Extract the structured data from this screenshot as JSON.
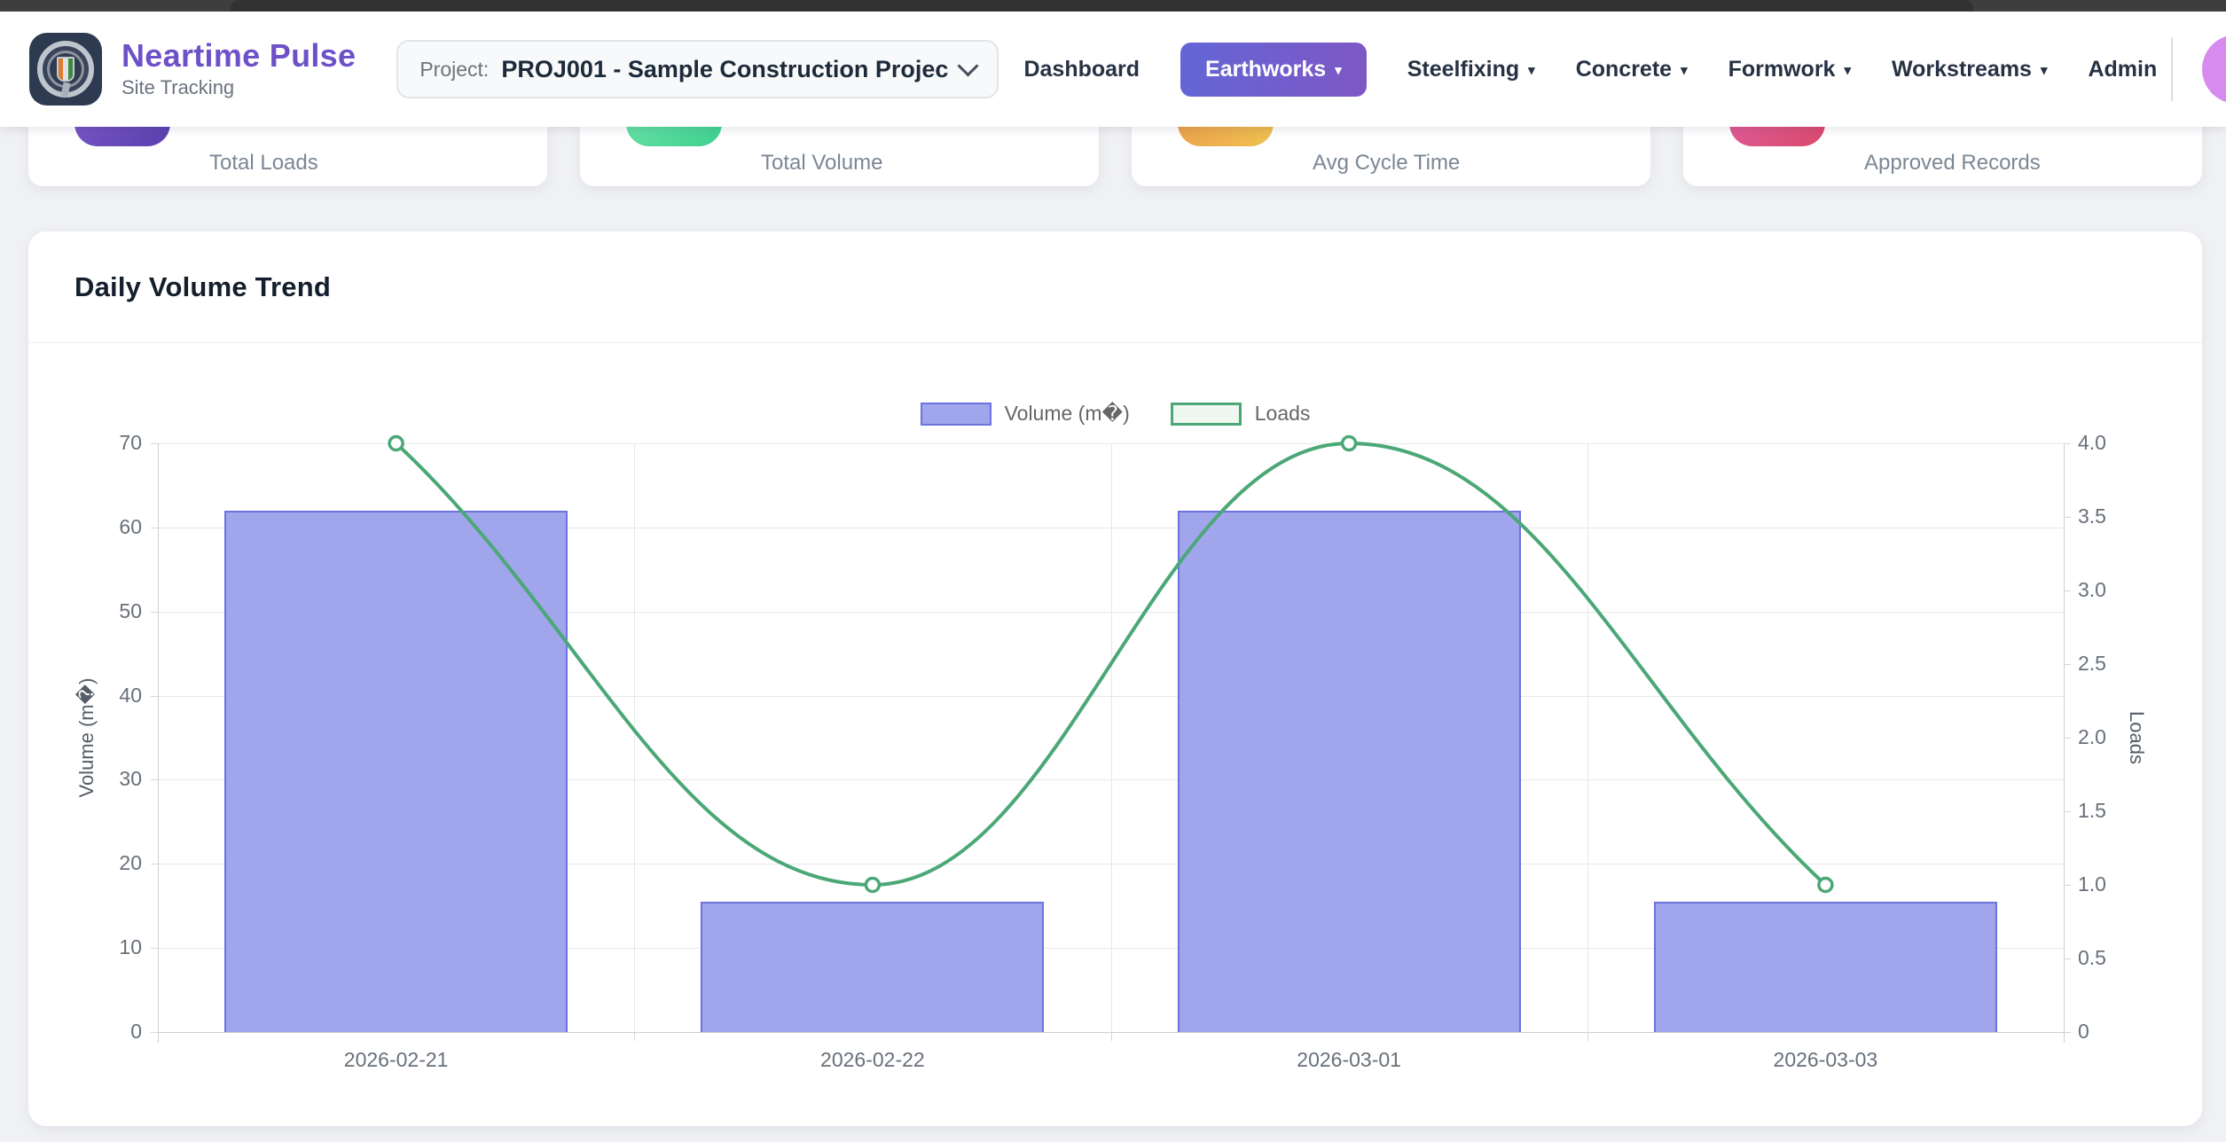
{
  "header": {
    "brand": {
      "name": "Neartime Pulse",
      "subtitle": "Site Tracking"
    },
    "project": {
      "label": "Project:",
      "value": "PROJ001 - Sample Construction Projec"
    },
    "nav_items": [
      {
        "label": "Dashboard",
        "active": false,
        "has_caret": false
      },
      {
        "label": "Earthworks",
        "active": true,
        "has_caret": true
      },
      {
        "label": "Steelfixing",
        "active": false,
        "has_caret": true
      },
      {
        "label": "Concrete",
        "active": false,
        "has_caret": true
      },
      {
        "label": "Formwork",
        "active": false,
        "has_caret": true
      },
      {
        "label": "Workstreams",
        "active": false,
        "has_caret": true
      },
      {
        "label": "Admin",
        "active": false,
        "has_caret": false
      }
    ],
    "icons": {
      "caret_glyph": "▾"
    },
    "accent_gradient": [
      "#6366d6",
      "#7e57c4"
    ],
    "avatar_color": "#d78bef"
  },
  "stat_cards": [
    {
      "label": "Total Loads",
      "icon": "loads-icon",
      "gradient": [
        "#8a63d2",
        "#5a3fae"
      ]
    },
    {
      "label": "Total Volume",
      "icon": "volume-icon",
      "gradient": [
        "#7ceab3",
        "#3ecf8e"
      ]
    },
    {
      "label": "Avg Cycle Time",
      "icon": "cycle-icon",
      "gradient": [
        "#ea8a4b",
        "#eec24f"
      ]
    },
    {
      "label": "Approved Records",
      "icon": "approved-icon",
      "gradient": [
        "#e465b1",
        "#d84a6b"
      ]
    }
  ],
  "chart_card": {
    "title": "Daily Volume Trend"
  },
  "chart_data": {
    "type": "bar+line",
    "categories": [
      "2026-02-21",
      "2026-02-22",
      "2026-03-01",
      "2026-03-03"
    ],
    "series": [
      {
        "name": "Volume (m�)",
        "type": "bar",
        "axis": "left",
        "values": [
          62,
          15.5,
          62,
          15.5
        ],
        "fill": "#a0a5ec",
        "border": "#6c72de"
      },
      {
        "name": "Loads",
        "type": "line",
        "axis": "right",
        "values": [
          4,
          1,
          4,
          1
        ],
        "color": "#4ba876",
        "point_fill": "#ffffff",
        "tension": 0.4
      }
    ],
    "left_axis": {
      "title": "Volume (m�)",
      "min": 0,
      "max": 70,
      "ticks": [
        0,
        10,
        20,
        30,
        40,
        50,
        60,
        70
      ]
    },
    "right_axis": {
      "title": "Loads",
      "min": 0,
      "max": 4,
      "ticks": [
        "0",
        "0.5",
        "1.0",
        "1.5",
        "2.0",
        "2.5",
        "3.0",
        "3.5",
        "4.0"
      ]
    },
    "legend": {
      "position": "top",
      "items": [
        "Volume (m�)",
        "Loads"
      ]
    },
    "grid": true
  }
}
